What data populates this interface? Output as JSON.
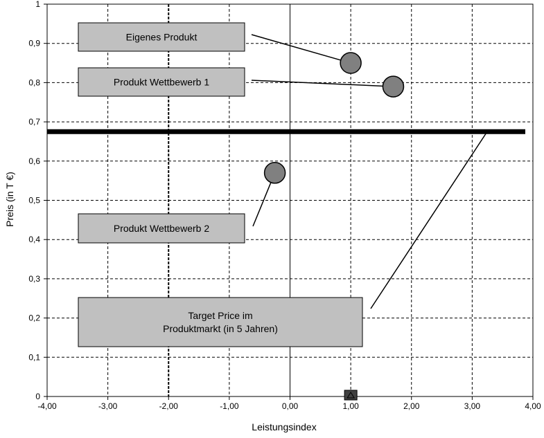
{
  "chart_data": {
    "type": "scatter",
    "xlabel": "Leistungsindex",
    "ylabel": "Preis (in T €)",
    "xlim": [
      -4,
      4
    ],
    "ylim": [
      0,
      1
    ],
    "x_ticks": [
      "-4,00",
      "-3,00",
      "-2,00",
      "-1,00",
      "0,00",
      "1,00",
      "2,00",
      "3,00",
      "4,00"
    ],
    "y_ticks": [
      "0",
      "0,1",
      "0,2",
      "0,3",
      "0,4",
      "0,5",
      "0,6",
      "0,7",
      "0,8",
      "0,9",
      "1"
    ],
    "grid": true,
    "points": [
      {
        "x": 1.0,
        "y": 0.85,
        "label": "Eigenes Produkt"
      },
      {
        "x": 1.7,
        "y": 0.79,
        "label": "Produkt Wettbewerb 1"
      },
      {
        "x": -0.25,
        "y": 0.57,
        "label": "Produkt Wettbewerb 2"
      }
    ],
    "target_price": {
      "y": 0.675,
      "label_lines": [
        "Target Price im",
        "Produktmarkt (in 5 Jahren)"
      ]
    },
    "marker_square": {
      "x": 1.0,
      "y": 0.0
    },
    "bold_vertical_gridline_x": -2.0,
    "colors": {
      "point_fill": "#808080",
      "box_fill": "#c0c0c0",
      "target_line": "#000000",
      "grid": "#000000"
    }
  }
}
